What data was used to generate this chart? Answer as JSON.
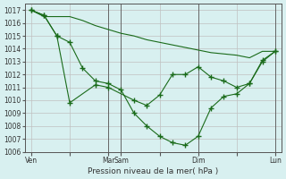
{
  "bg_color": "#d8f0f0",
  "grid_color": "#c0c0c0",
  "line_color": "#1a6b1a",
  "marker_color": "#1a6b1a",
  "xlabel": "Pression niveau de la mer( hPa )",
  "ylim": [
    1006,
    1017.5
  ],
  "yticks": [
    1006,
    1007,
    1008,
    1009,
    1010,
    1011,
    1012,
    1013,
    1014,
    1015,
    1016,
    1017
  ],
  "xtick_labels": [
    "Ven",
    "",
    "Mar",
    "Sam",
    "",
    "Dim",
    "",
    "Lun"
  ],
  "xtick_positions": [
    0,
    3,
    6,
    7,
    10,
    13,
    16,
    19
  ],
  "series1": {
    "x": [
      0,
      1,
      2,
      3,
      4,
      5,
      6,
      7,
      8,
      9,
      10,
      11,
      12,
      13,
      14,
      15,
      16,
      17,
      18,
      19
    ],
    "y": [
      1017.0,
      1016.5,
      1016.5,
      1016.5,
      1016.2,
      1015.8,
      1015.5,
      1015.2,
      1015.0,
      1014.7,
      1014.5,
      1014.3,
      1014.1,
      1013.9,
      1013.7,
      1013.6,
      1013.5,
      1013.3,
      1013.8,
      1013.8
    ],
    "has_markers": false
  },
  "series2": {
    "x": [
      0,
      1,
      2,
      3,
      5,
      6,
      8,
      9,
      10,
      11,
      12,
      13,
      14,
      15,
      16,
      17,
      18,
      19
    ],
    "y": [
      1017.0,
      1016.6,
      1015.0,
      1009.8,
      1011.2,
      1011.0,
      1010.0,
      1009.6,
      1010.4,
      1012.0,
      1012.0,
      1012.6,
      1011.8,
      1011.5,
      1011.0,
      1011.3,
      1013.0,
      1013.8
    ],
    "has_markers": true
  },
  "series3": {
    "x": [
      0,
      1,
      2,
      3,
      4,
      5,
      6,
      7,
      8,
      9,
      10,
      11,
      12,
      13,
      14,
      15,
      16,
      17,
      18,
      19
    ],
    "y": [
      1017.0,
      1016.6,
      1015.0,
      1014.5,
      1012.5,
      1011.5,
      1011.3,
      1010.8,
      1009.0,
      1008.0,
      1007.2,
      1006.7,
      1006.5,
      1007.2,
      1009.4,
      1010.3,
      1010.5,
      1011.3,
      1013.1,
      1013.8
    ],
    "has_markers": true
  }
}
